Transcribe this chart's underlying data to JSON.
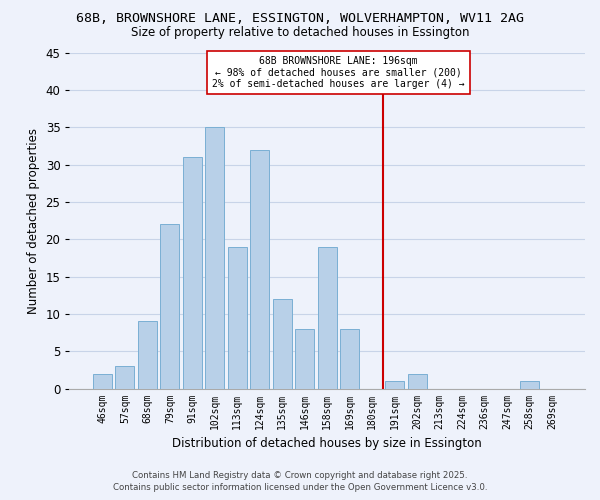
{
  "title1": "68B, BROWNSHORE LANE, ESSINGTON, WOLVERHAMPTON, WV11 2AG",
  "title2": "Size of property relative to detached houses in Essington",
  "xlabel": "Distribution of detached houses by size in Essington",
  "ylabel": "Number of detached properties",
  "bar_labels": [
    "46sqm",
    "57sqm",
    "68sqm",
    "79sqm",
    "91sqm",
    "102sqm",
    "113sqm",
    "124sqm",
    "135sqm",
    "146sqm",
    "158sqm",
    "169sqm",
    "180sqm",
    "191sqm",
    "202sqm",
    "213sqm",
    "224sqm",
    "236sqm",
    "247sqm",
    "258sqm",
    "269sqm"
  ],
  "bar_heights": [
    2,
    3,
    9,
    22,
    31,
    35,
    19,
    32,
    12,
    8,
    19,
    8,
    0,
    1,
    2,
    0,
    0,
    0,
    0,
    1,
    0
  ],
  "bar_color": "#b8d0e8",
  "bar_edge_color": "#7aafd4",
  "vline_x_idx": 13.0,
  "vline_color": "#cc0000",
  "annotation_title": "68B BROWNSHORE LANE: 196sqm",
  "annotation_line1": "← 98% of detached houses are smaller (200)",
  "annotation_line2": "2% of semi-detached houses are larger (4) →",
  "ylim": [
    0,
    45
  ],
  "yticks": [
    0,
    5,
    10,
    15,
    20,
    25,
    30,
    35,
    40,
    45
  ],
  "footer1": "Contains HM Land Registry data © Crown copyright and database right 2025.",
  "footer2": "Contains public sector information licensed under the Open Government Licence v3.0.",
  "bg_color": "#eef2fb",
  "plot_bg_color": "#eef2fb",
  "grid_color": "#c8d4e8"
}
